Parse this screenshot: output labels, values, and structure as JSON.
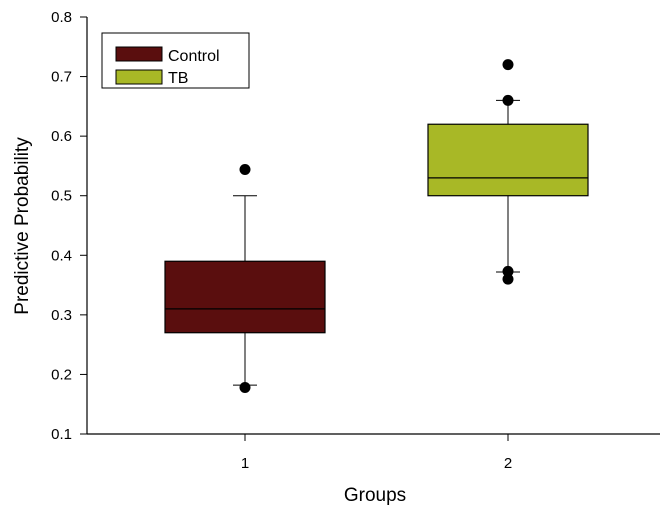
{
  "chart_data": {
    "type": "box",
    "xlabel": "Groups",
    "ylabel": "Predictive Probability",
    "ylim": [
      0.1,
      0.8
    ],
    "y_ticks": [
      0.1,
      0.2,
      0.3,
      0.4,
      0.5,
      0.6,
      0.7,
      0.8
    ],
    "y_tick_labels": [
      "0.1",
      "0.2",
      "0.3",
      "0.4",
      "0.5",
      "0.6",
      "0.7",
      "0.8"
    ],
    "categories": [
      "1",
      "2"
    ],
    "legend_position": "top-left",
    "grid": false,
    "series": [
      {
        "name": "Control",
        "category": "1",
        "color": "#5a0e0e",
        "whisker_low": 0.182,
        "q1": 0.27,
        "median": 0.31,
        "q3": 0.39,
        "whisker_high": 0.5,
        "outliers": [
          0.544,
          0.178
        ]
      },
      {
        "name": "TB",
        "category": "2",
        "color": "#a8b826",
        "whisker_low": 0.372,
        "q1": 0.5,
        "median": 0.53,
        "q3": 0.62,
        "whisker_high": 0.66,
        "outliers": [
          0.72,
          0.66,
          0.373,
          0.36
        ]
      }
    ]
  }
}
